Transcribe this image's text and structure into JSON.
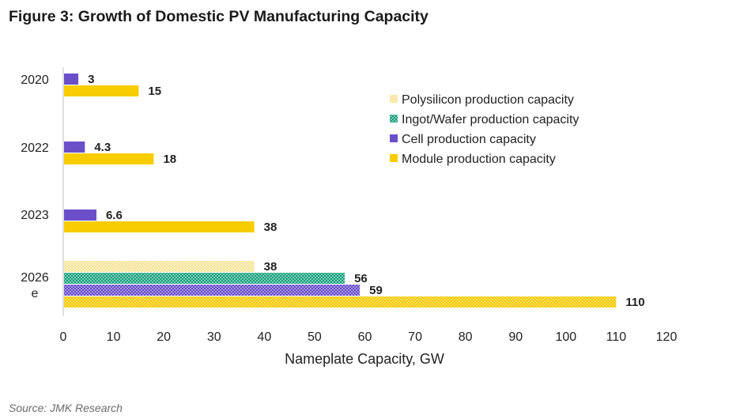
{
  "title": "Figure 3: Growth of Domestic PV Manufacturing Capacity",
  "source": "Source: JMK Research",
  "colors": {
    "polysilicon": "#f7e79a",
    "ingot": "#1aa383",
    "cell": "#6a4fc9",
    "module": "#f7cd00"
  },
  "chart_data": {
    "type": "bar",
    "orientation": "horizontal",
    "title": "Figure 3: Growth of Domestic PV Manufacturing Capacity",
    "xlabel": "Nameplate Capacity, GW",
    "ylabel": "",
    "xlim": [
      0,
      120
    ],
    "xticks": [
      0,
      10,
      20,
      30,
      40,
      50,
      60,
      70,
      80,
      90,
      100,
      110,
      120
    ],
    "grid": false,
    "legend_position": "right",
    "categories": [
      "2020",
      "2022",
      "2023",
      "2026e"
    ],
    "category_lines": [
      [
        "2020"
      ],
      [
        "2022"
      ],
      [
        "2023"
      ],
      [
        "2026",
        "e"
      ]
    ],
    "series": [
      {
        "name": "Polysilicon production capacity",
        "key": "polysilicon",
        "values": [
          null,
          null,
          null,
          38
        ],
        "labels": [
          "",
          "",
          "",
          "38"
        ],
        "pattern": "dots-light"
      },
      {
        "name": "Ingot/Wafer production capacity",
        "key": "ingot",
        "values": [
          null,
          null,
          null,
          56
        ],
        "labels": [
          "",
          "",
          "",
          "56"
        ],
        "pattern": "dots"
      },
      {
        "name": "Cell production capacity",
        "key": "cell",
        "values": [
          3,
          4.3,
          6.6,
          59
        ],
        "labels": [
          "3",
          "4.3",
          "6.6",
          "59"
        ],
        "pattern": "solid-2026-dots"
      },
      {
        "name": "Module production capacity",
        "key": "module",
        "values": [
          15,
          18,
          38,
          110
        ],
        "labels": [
          "15",
          "18",
          "38",
          "110"
        ],
        "pattern": "solid-2026-dots"
      }
    ]
  }
}
